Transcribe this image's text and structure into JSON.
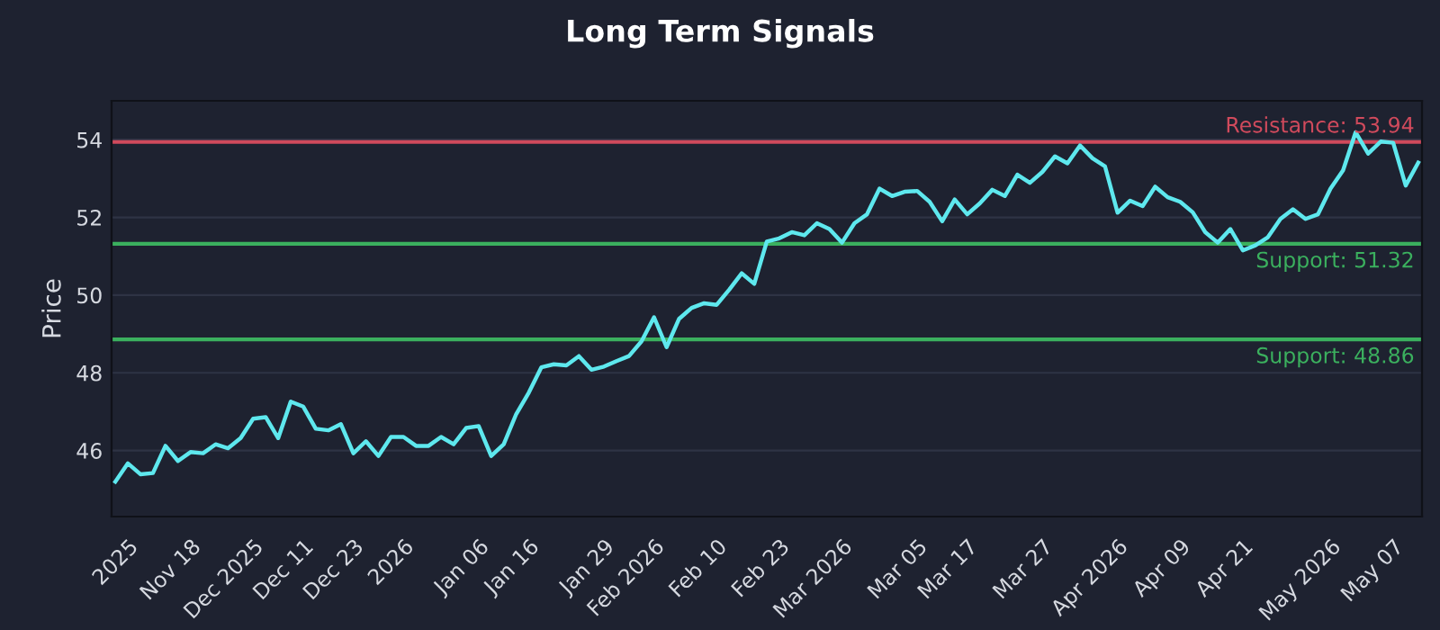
{
  "chart_data": {
    "type": "line",
    "title": "Long Term Signals",
    "ylabel": "Price",
    "categories": [
      null,
      "2025",
      null,
      null,
      null,
      null,
      "Nov 18",
      null,
      null,
      null,
      null,
      "Dec 2025",
      null,
      null,
      null,
      "Dec 11",
      null,
      null,
      null,
      "Dec 23",
      null,
      null,
      null,
      "2026",
      null,
      null,
      null,
      null,
      null,
      "Jan 06",
      null,
      null,
      null,
      "Jan 16",
      null,
      null,
      null,
      null,
      null,
      "Jan 29",
      null,
      null,
      null,
      "Feb 2026",
      null,
      null,
      null,
      null,
      "Feb 10",
      null,
      null,
      null,
      null,
      "Feb 23",
      null,
      null,
      null,
      null,
      "Mar 2026",
      null,
      null,
      null,
      null,
      null,
      "Mar 05",
      null,
      null,
      null,
      "Mar 17",
      null,
      null,
      null,
      null,
      null,
      "Mar 27",
      null,
      null,
      null,
      null,
      null,
      "Apr 2026",
      null,
      null,
      null,
      null,
      "Apr 09",
      null,
      null,
      null,
      null,
      "Apr 21",
      null,
      null,
      null,
      null,
      null,
      null,
      "May 2026",
      null,
      null,
      null,
      null,
      "May 07",
      null,
      null
    ],
    "series": [
      {
        "color": "#5ee8ee",
        "values": [
          45.2,
          45.67,
          45.39,
          45.42,
          46.12,
          45.73,
          45.96,
          45.93,
          46.16,
          46.06,
          46.32,
          46.82,
          46.86,
          46.32,
          47.26,
          47.13,
          46.56,
          46.52,
          46.68,
          45.93,
          46.24,
          45.86,
          46.35,
          46.35,
          46.12,
          46.12,
          46.35,
          46.16,
          46.58,
          46.63,
          45.86,
          46.16,
          46.94,
          47.49,
          48.14,
          48.22,
          48.19,
          48.43,
          48.08,
          48.16,
          48.3,
          48.43,
          48.81,
          49.43,
          48.66,
          49.39,
          49.67,
          49.79,
          49.75,
          50.14,
          50.56,
          50.29,
          51.38,
          51.46,
          51.62,
          51.54,
          51.85,
          51.7,
          51.35,
          51.85,
          52.08,
          52.74,
          52.55,
          52.66,
          52.68,
          52.4,
          51.9,
          52.46,
          52.08,
          52.36,
          52.71,
          52.55,
          53.1,
          52.89,
          53.17,
          53.57,
          53.39,
          53.85,
          53.52,
          53.31,
          52.12,
          52.43,
          52.29,
          52.79,
          52.52,
          52.4,
          52.13,
          51.62,
          51.35,
          51.7,
          51.15,
          51.28,
          51.49,
          51.96,
          52.21,
          51.96,
          52.08,
          52.74,
          53.21,
          54.19,
          53.64,
          53.95,
          53.92,
          52.82,
          53.41
        ]
      }
    ],
    "ylim": [
      44.3,
      55.0
    ],
    "yticks": [
      46,
      48,
      50,
      52,
      54
    ],
    "grid": "y",
    "ref_lines": [
      {
        "axis": "y",
        "value": 53.94,
        "label": "Resistance: 53.94",
        "color": "#d04a5c"
      },
      {
        "axis": "y",
        "value": 51.32,
        "label": "Support: 51.32",
        "color": "#3bb05e"
      },
      {
        "axis": "y",
        "value": 48.86,
        "label": "Support: 48.86",
        "color": "#3bb05e"
      }
    ]
  }
}
